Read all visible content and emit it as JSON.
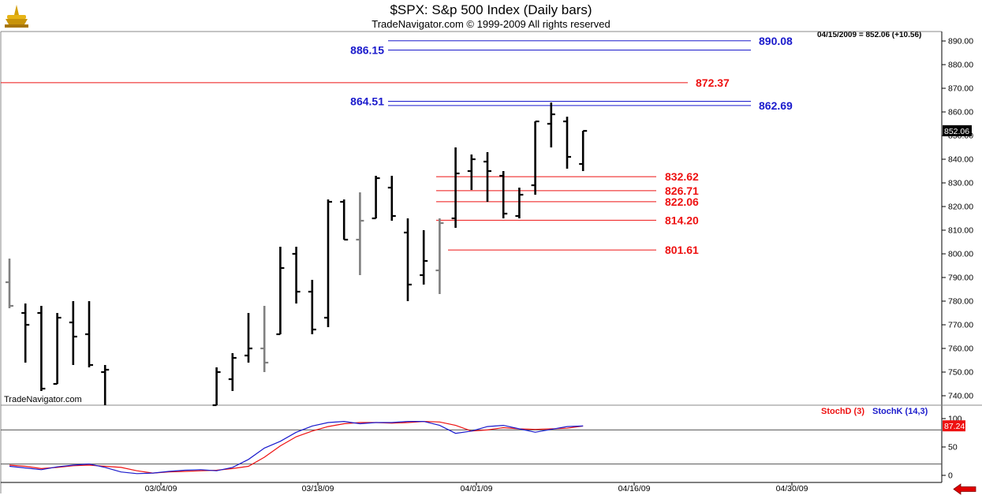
{
  "header": {
    "title": "$SPX:  S&p 500 Index  (Daily bars)",
    "subtitle": "TradeNavigator.com © 1999-2009 All rights reserved",
    "quote": "04/15/2009 = 852.06 (+10.56)",
    "watermark": "TradeNavigator.com"
  },
  "colors": {
    "bar_normal": "#000000",
    "bar_gray": "#808080",
    "bar_up_close": "#00e000",
    "bar_down_close": "#ee0000",
    "level_blue": "#1a1acc",
    "level_red": "#ee1111",
    "stochK": "#1a1acc",
    "stochD": "#ee1111",
    "last_price_box": "#000000",
    "stoch_value_box": "#ee1111"
  },
  "chart_data": [
    {
      "type": "bar",
      "title": "$SPX:  S&p 500 Index  (Daily bars)",
      "ylim": [
        735,
        895
      ],
      "y_ticks": [
        "740.00",
        "750.00",
        "760.00",
        "770.00",
        "780.00",
        "790.00",
        "800.00",
        "810.00",
        "820.00",
        "830.00",
        "840.00",
        "850.00",
        "860.00",
        "870.00",
        "880.00",
        "890.00"
      ],
      "y_tick_values": [
        740,
        750,
        760,
        770,
        780,
        790,
        800,
        810,
        820,
        830,
        840,
        850,
        860,
        870,
        880,
        890
      ],
      "x_ticks": [
        "03/04/09",
        "03/18/09",
        "04/01/09",
        "04/16/09",
        "04/30/09"
      ],
      "last_price_label": "852.06",
      "ohlc": [
        {
          "o": 788,
          "h": 798,
          "l": 777,
          "c": 778,
          "color": "gray",
          "day": 0
        },
        {
          "o": 775,
          "h": 779,
          "l": 754,
          "c": 770,
          "color": "black",
          "day": 1
        },
        {
          "o": 775,
          "h": 778,
          "l": 742,
          "c": 743,
          "color": "black",
          "day": 2
        },
        {
          "o": 745,
          "h": 775,
          "l": 745,
          "c": 773,
          "color": "red",
          "day": 3
        },
        {
          "o": 771,
          "h": 780,
          "l": 753,
          "c": 765,
          "color": "black",
          "day": 4
        },
        {
          "o": 766,
          "h": 780,
          "l": 752,
          "c": 753,
          "color": "black",
          "day": 5
        },
        {
          "o": 750,
          "h": 753,
          "l": 736,
          "c": 751,
          "color": "black",
          "day": 6
        },
        {
          "o": 735,
          "h": 752,
          "l": 735,
          "c": 750,
          "color": "black",
          "day": 13
        },
        {
          "o": 747,
          "h": 758,
          "l": 742,
          "c": 756,
          "color": "black",
          "day": 14
        },
        {
          "o": 757,
          "h": 775,
          "l": 754,
          "c": 760,
          "color": "black",
          "day": 15
        },
        {
          "o": 760,
          "h": 778,
          "l": 750,
          "c": 754,
          "color": "gray",
          "day": 16
        },
        {
          "o": 766,
          "h": 803,
          "l": 766,
          "c": 794,
          "color": "black",
          "day": 17
        },
        {
          "o": 800,
          "h": 803,
          "l": 779,
          "c": 784,
          "color": "black",
          "day": 18
        },
        {
          "o": 784,
          "h": 789,
          "l": 766,
          "c": 768,
          "color": "black",
          "day": 19
        },
        {
          "o": 773,
          "h": 823,
          "l": 769,
          "c": 822,
          "color": "black",
          "day": 20
        },
        {
          "o": 822,
          "h": 823,
          "l": 806,
          "c": 806,
          "color": "black",
          "day": 21
        },
        {
          "o": 806,
          "h": 826,
          "l": 791,
          "c": 814,
          "color": "gray",
          "day": 22
        },
        {
          "o": 815,
          "h": 833,
          "l": 815,
          "c": 832,
          "color": "black",
          "day": 23
        },
        {
          "o": 828,
          "h": 833,
          "l": 814,
          "c": 816,
          "color": "black",
          "day": 24
        },
        {
          "o": 809,
          "h": 815,
          "l": 780,
          "c": 787,
          "color": "black",
          "day": 25
        },
        {
          "o": 791,
          "h": 810,
          "l": 787,
          "c": 797,
          "color": "black",
          "day": 26
        },
        {
          "o": 793,
          "h": 815,
          "l": 783,
          "c": 813,
          "color": "gray",
          "day": 27
        },
        {
          "o": 815,
          "h": 845,
          "l": 811,
          "c": 834,
          "color": "black",
          "day": 28
        },
        {
          "o": 835,
          "h": 842,
          "l": 827,
          "c": 840,
          "color": "red",
          "day": 29
        },
        {
          "o": 839,
          "h": 843,
          "l": 822,
          "c": 835,
          "color": "black",
          "day": 30
        },
        {
          "o": 833,
          "h": 835,
          "l": 815,
          "c": 817,
          "color": "black",
          "day": 31
        },
        {
          "o": 816,
          "h": 828,
          "l": 815,
          "c": 825,
          "color": "red",
          "day": 32
        },
        {
          "o": 829,
          "h": 856,
          "l": 825,
          "c": 856,
          "color": "black",
          "day": 33
        },
        {
          "o": 855,
          "h": 864,
          "l": 845,
          "c": 859,
          "color": "black",
          "day": 34
        },
        {
          "o": 856,
          "h": 858,
          "l": 836,
          "c": 841,
          "color": "black",
          "day": 35
        },
        {
          "o": 838,
          "h": 852,
          "l": 835,
          "c": 852,
          "color": "black",
          "day": 36
        }
      ],
      "levels": [
        {
          "label": "890.08",
          "value": 890.08,
          "color": "blue",
          "label_side": "right"
        },
        {
          "label": "886.15",
          "value": 886.15,
          "color": "blue",
          "label_side": "left"
        },
        {
          "label": "872.37",
          "value": 872.37,
          "color": "red",
          "label_side": "right"
        },
        {
          "label": "864.51",
          "value": 864.51,
          "color": "blue",
          "label_side": "left"
        },
        {
          "label": "862.69",
          "value": 862.69,
          "color": "blue",
          "label_side": "right"
        },
        {
          "label": "832.62",
          "value": 832.62,
          "color": "red",
          "label_side": "right"
        },
        {
          "label": "826.71",
          "value": 826.71,
          "color": "red",
          "label_side": "right"
        },
        {
          "label": "822.06",
          "value": 822.06,
          "color": "red",
          "label_side": "right"
        },
        {
          "label": "814.20",
          "value": 814.2,
          "color": "red",
          "label_side": "right"
        },
        {
          "label": "801.61",
          "value": 801.61,
          "color": "red",
          "label_side": "right"
        }
      ]
    },
    {
      "type": "line",
      "ylim": [
        -5,
        105
      ],
      "y_ticks": [
        "0",
        "50",
        "100"
      ],
      "y_tick_values": [
        0,
        50,
        100
      ],
      "reference_lines": [
        20,
        80
      ],
      "value_label": "87.24",
      "series": [
        {
          "name": "StochD (3)",
          "color": "red",
          "values": [
            18,
            16,
            12,
            14,
            17,
            18,
            16,
            14,
            8,
            4,
            6,
            7,
            8,
            9,
            12,
            16,
            32,
            52,
            68,
            78,
            86,
            91,
            93,
            93,
            92,
            93,
            95,
            94,
            88,
            78,
            80,
            84,
            82,
            81,
            82,
            83,
            87
          ]
        },
        {
          "name": "StochK (14,3)",
          "color": "blue",
          "values": [
            16,
            13,
            10,
            15,
            18,
            20,
            14,
            6,
            3,
            4,
            7,
            9,
            10,
            8,
            14,
            28,
            48,
            60,
            76,
            87,
            93,
            95,
            91,
            93,
            93,
            95,
            95,
            88,
            74,
            78,
            86,
            88,
            82,
            76,
            81,
            86,
            87
          ]
        }
      ]
    }
  ],
  "legend": {
    "stochD": "StochD (3)",
    "stochK": "StochK (14,3)"
  }
}
